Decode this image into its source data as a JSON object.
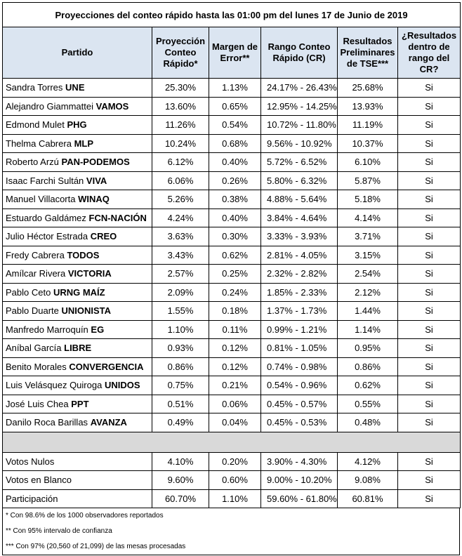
{
  "title": "Proyecciones del conteo rápido hasta las 01:00 pm del lunes 17 de Junio de 2019",
  "headers": {
    "party": "Partido",
    "projection": "Proyección Conteo Rápido*",
    "margin": "Margen de Error**",
    "range": "Rango Conteo Rápido (CR)",
    "tse": "Resultados Preliminares de TSE***",
    "in_range": "¿Resultados dentro de rango del CR?"
  },
  "rows": [
    {
      "name": "Sandra Torres",
      "party": "UNE",
      "projection": "25.30%",
      "margin": "1.13%",
      "range": "24.17% - 26.43%",
      "tse": "25.68%",
      "in_range": "Si"
    },
    {
      "name": "Alejandro Giammattei",
      "party": "VAMOS",
      "projection": "13.60%",
      "margin": "0.65%",
      "range": "12.95% - 14.25%",
      "tse": "13.93%",
      "in_range": "Si"
    },
    {
      "name": "Edmond Mulet",
      "party": "PHG",
      "projection": "11.26%",
      "margin": "0.54%",
      "range": "10.72% - 11.80%",
      "tse": "11.19%",
      "in_range": "Si"
    },
    {
      "name": "Thelma Cabrera",
      "party": "MLP",
      "projection": "10.24%",
      "margin": "0.68%",
      "range": "9.56% - 10.92%",
      "tse": "10.37%",
      "in_range": "Si"
    },
    {
      "name": "Roberto Arzú",
      "party": "PAN-PODEMOS",
      "projection": "6.12%",
      "margin": "0.40%",
      "range": "5.72% - 6.52%",
      "tse": "6.10%",
      "in_range": "Si"
    },
    {
      "name": "Isaac Farchi Sultán",
      "party": "VIVA",
      "projection": "6.06%",
      "margin": "0.26%",
      "range": "5.80% - 6.32%",
      "tse": "5.87%",
      "in_range": "Si"
    },
    {
      "name": "Manuel Villacorta",
      "party": "WINAQ",
      "projection": "5.26%",
      "margin": "0.38%",
      "range": "4.88% - 5.64%",
      "tse": "5.18%",
      "in_range": "Si"
    },
    {
      "name": "Estuardo Galdámez",
      "party": "FCN-NACIÓN",
      "projection": "4.24%",
      "margin": "0.40%",
      "range": "3.84% - 4.64%",
      "tse": "4.14%",
      "in_range": "Si"
    },
    {
      "name": "Julio Héctor Estrada",
      "party": "CREO",
      "projection": "3.63%",
      "margin": "0.30%",
      "range": "3.33% - 3.93%",
      "tse": "3.71%",
      "in_range": "Si"
    },
    {
      "name": "Fredy Cabrera",
      "party": "TODOS",
      "projection": "3.43%",
      "margin": "0.62%",
      "range": "2.81% - 4.05%",
      "tse": "3.15%",
      "in_range": "Si"
    },
    {
      "name": "Amílcar Rivera",
      "party": "VICTORIA",
      "projection": "2.57%",
      "margin": "0.25%",
      "range": "2.32% - 2.82%",
      "tse": "2.54%",
      "in_range": "Si"
    },
    {
      "name": "Pablo Ceto",
      "party": "URNG MAÍZ",
      "projection": "2.09%",
      "margin": "0.24%",
      "range": "1.85% - 2.33%",
      "tse": "2.12%",
      "in_range": "Si"
    },
    {
      "name": "Pablo Duarte",
      "party": "UNIONISTA",
      "projection": "1.55%",
      "margin": "0.18%",
      "range": "1.37% - 1.73%",
      "tse": "1.44%",
      "in_range": "Si"
    },
    {
      "name": "Manfredo Marroquín",
      "party": "EG",
      "projection": "1.10%",
      "margin": "0.11%",
      "range": "0.99% - 1.21%",
      "tse": "1.14%",
      "in_range": "Si"
    },
    {
      "name": "Aníbal García",
      "party": "LIBRE",
      "projection": "0.93%",
      "margin": "0.12%",
      "range": "0.81% - 1.05%",
      "tse": "0.95%",
      "in_range": "Si"
    },
    {
      "name": "Benito Morales",
      "party": "CONVERGENCIA",
      "projection": "0.86%",
      "margin": "0.12%",
      "range": "0.74% - 0.98%",
      "tse": "0.86%",
      "in_range": "Si"
    },
    {
      "name": "Luis Velásquez Quiroga",
      "party": "UNIDOS",
      "projection": "0.75%",
      "margin": "0.21%",
      "range": "0.54% - 0.96%",
      "tse": "0.62%",
      "in_range": "Si"
    },
    {
      "name": "José Luis Chea",
      "party": "PPT",
      "projection": "0.51%",
      "margin": "0.06%",
      "range": "0.45% - 0.57%",
      "tse": "0.55%",
      "in_range": "Si"
    },
    {
      "name": "Danilo Roca Barillas",
      "party": "AVANZA",
      "projection": "0.49%",
      "margin": "0.04%",
      "range": "0.45% - 0.53%",
      "tse": "0.48%",
      "in_range": "Si"
    }
  ],
  "summary_rows": [
    {
      "label": "Votos Nulos",
      "projection": "4.10%",
      "margin": "0.20%",
      "range": "3.90% - 4.30%",
      "tse": "4.12%",
      "in_range": "Si"
    },
    {
      "label": "Votos en Blanco",
      "projection": "9.60%",
      "margin": "0.60%",
      "range": "9.00% - 10.20%",
      "tse": "9.08%",
      "in_range": "Si"
    },
    {
      "label": "Participación",
      "projection": "60.70%",
      "margin": "1.10%",
      "range": "59.60% - 61.80%",
      "tse": "60.81%",
      "in_range": "Si"
    }
  ],
  "footnotes": [
    "* Con 98.6% de los 1000 observadores reportados",
    "** Con 95% intervalo de confianza",
    "*** Con 97% (20,560 of 21,099) de las mesas procesadas"
  ]
}
